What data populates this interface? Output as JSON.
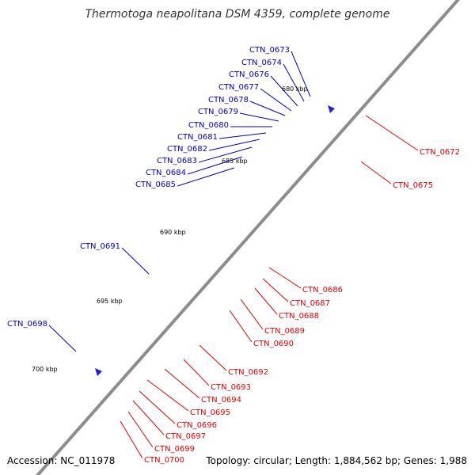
{
  "title": "Thermotoga neapolitana DSM 4359, complete genome",
  "footer": {
    "accession": "Accession: NC_011978",
    "summary": "Topology: circular; Length: 1,884,562 bp; Genes: 1,988"
  },
  "colors": {
    "backbone": "#808080",
    "minus_label": "#0000cc",
    "plus_label": "#e00000",
    "tick": "#1a7a1a"
  },
  "ticks": [
    "680 kbp",
    "685 kbp",
    "690 kbp",
    "695 kbp",
    "700 kbp"
  ],
  "minus_genes": [
    "CTN_0673",
    "CTN_0674",
    "CTN_0676",
    "CTN_0677",
    "CTN_0678",
    "CTN_0679",
    "CTN_0680",
    "CTN_0681",
    "CTN_0682",
    "CTN_0683",
    "CTN_0684",
    "CTN_0685",
    "CTN_0691",
    "CTN_0698"
  ],
  "plus_genes": [
    "CTN_0672",
    "CTN_0675",
    "CTN_0686",
    "CTN_0687",
    "CTN_0688",
    "CTN_0689",
    "CTN_0690",
    "CTN_0692",
    "CTN_0693",
    "CTN_0694",
    "CTN_0695",
    "CTN_0696",
    "CTN_0697",
    "CTN_0699",
    "CTN_0700"
  ]
}
